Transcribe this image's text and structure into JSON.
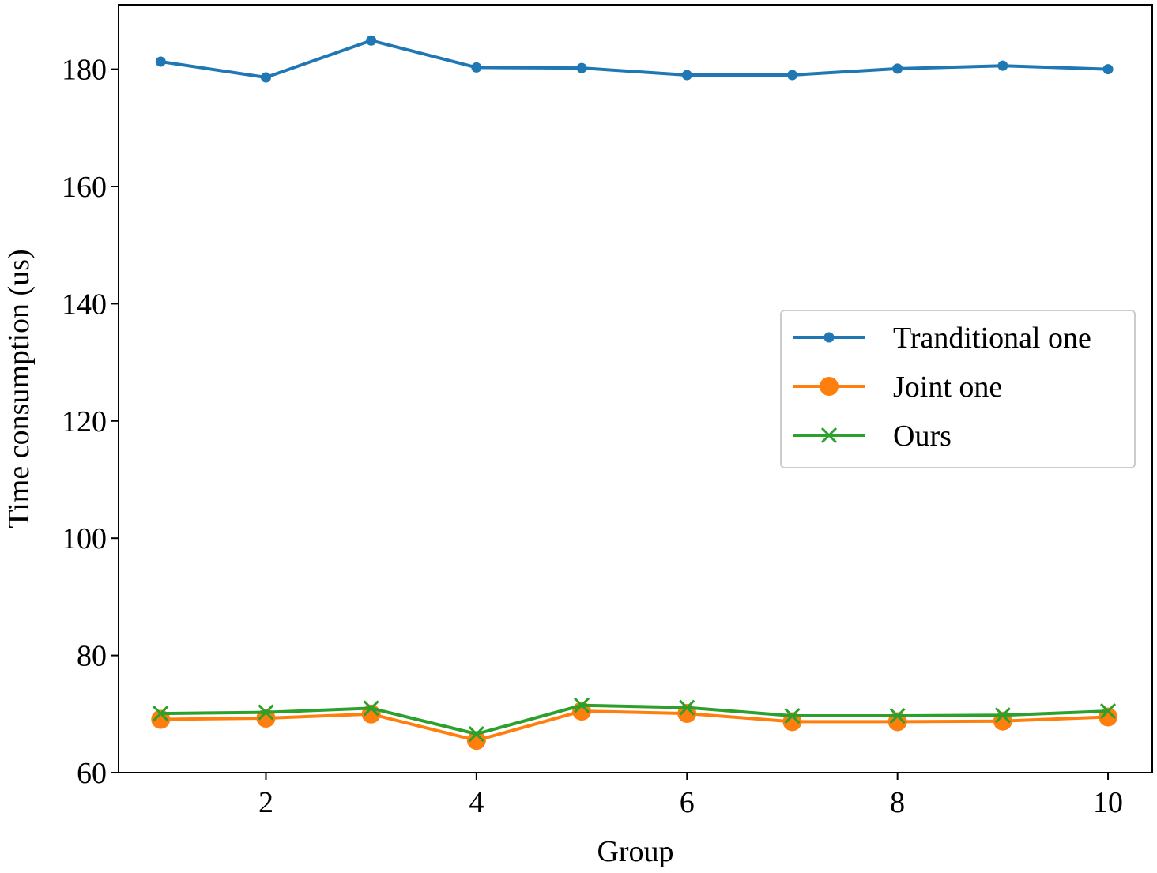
{
  "chart_data": {
    "type": "line",
    "title": "",
    "xlabel": "Group",
    "ylabel": "Time consumption (us)",
    "xlim": [
      0.6,
      10.42
    ],
    "ylim": [
      60,
      191
    ],
    "xticks": [
      2,
      4,
      6,
      8,
      10
    ],
    "yticks": [
      60,
      80,
      100,
      120,
      140,
      160,
      180
    ],
    "grid": false,
    "legend_position": "center-right",
    "x": [
      1,
      2,
      3,
      4,
      5,
      6,
      7,
      8,
      9,
      10
    ],
    "series": [
      {
        "name": "Tranditional one",
        "color": "#1f77b4",
        "marker": "small-dot",
        "values": [
          181.3,
          178.6,
          184.9,
          180.3,
          180.2,
          179.0,
          179.0,
          180.1,
          180.6,
          180.0
        ]
      },
      {
        "name": "Joint one",
        "color": "#ff7f0e",
        "marker": "large-dot",
        "values": [
          69.1,
          69.3,
          70.0,
          65.5,
          70.5,
          70.1,
          68.7,
          68.7,
          68.8,
          69.5
        ]
      },
      {
        "name": "Ours",
        "color": "#2ca02c",
        "marker": "x",
        "values": [
          70.1,
          70.3,
          71.0,
          66.6,
          71.5,
          71.1,
          69.7,
          69.7,
          69.8,
          70.5
        ]
      }
    ]
  }
}
